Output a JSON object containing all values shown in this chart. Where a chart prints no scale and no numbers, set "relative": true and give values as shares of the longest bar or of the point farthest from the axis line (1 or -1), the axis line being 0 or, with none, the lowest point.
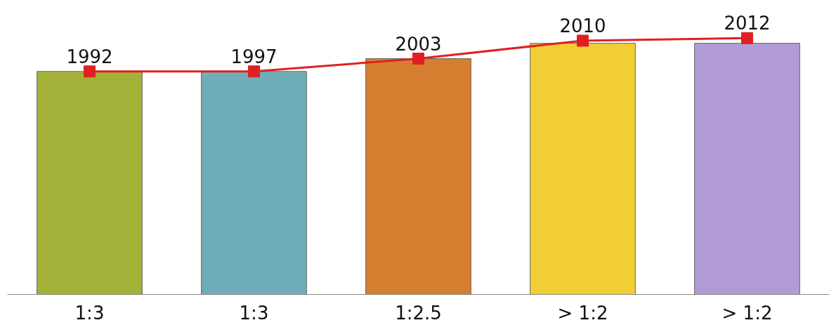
{
  "chart_data": {
    "type": "bar",
    "categories": [
      "1:3",
      "1:3",
      "1:2.5",
      "> 1:2",
      "> 1:2"
    ],
    "relative": true,
    "grid": false,
    "marker": "square",
    "line_style": "solid",
    "annotations": [
      "1992",
      "1997",
      "2003",
      "2010",
      "2012"
    ],
    "series": [
      {
        "colors": [
          "#9aa823",
          "#5fa5b0",
          "#d0701a",
          "#f0c820",
          "#a890d0"
        ],
        "values": [
          0.87,
          0.87,
          0.92,
          0.98,
          0.98
        ]
      },
      {
        "type": "line",
        "color": "#e02020",
        "values": [
          0.87,
          0.87,
          0.92,
          0.99,
          1.0
        ]
      }
    ]
  }
}
